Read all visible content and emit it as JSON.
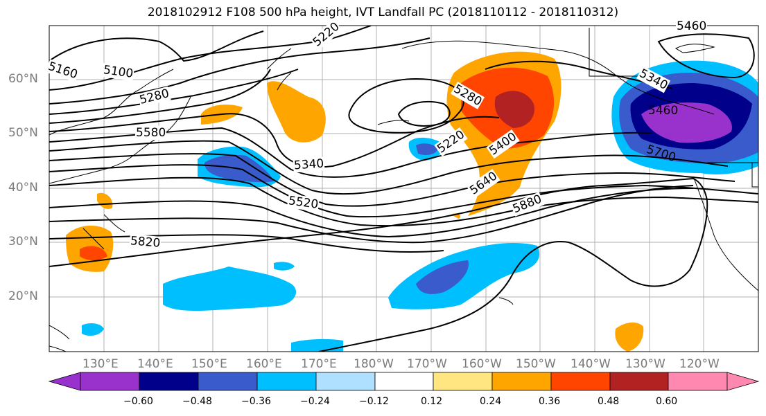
{
  "title": "2018102912 F108 500 hPa height, IVT Landfall PC (2018110112 - 2018110312)",
  "lat_labels": [
    "60°N",
    "50°N",
    "40°N",
    "30°N",
    "20°N"
  ],
  "lon_labels": [
    "130°E",
    "140°E",
    "150°E",
    "160°E",
    "170°E",
    "180°W",
    "170°W",
    "160°W",
    "150°W",
    "140°W",
    "130°W",
    "120°W"
  ],
  "contour_labels": [
    "5160",
    "5100",
    "5280",
    "5220",
    "5580",
    "5340",
    "5520",
    "5820",
    "5280",
    "5220",
    "5400",
    "5640",
    "5880",
    "5340",
    "5460",
    "5700",
    "5460"
  ],
  "colorbar": {
    "ticks": [
      "−0.60",
      "−0.48",
      "−0.36",
      "−0.24",
      "−0.12",
      "0.12",
      "0.24",
      "0.36",
      "0.48",
      "0.60"
    ],
    "colors": [
      "#9932cc",
      "#00008b",
      "#3a5bcc",
      "#00bfff",
      "#b0e0ff",
      "#ffffff",
      "#ffe680",
      "#ffa500",
      "#ff4500",
      "#b22222",
      "#ff88b0"
    ]
  },
  "fill_colors": {
    "neg_light": "#00bfff",
    "neg_mid": "#3a5bcc",
    "neg_dark": "#00008b",
    "neg_max": "#9932cc",
    "pos_light": "#ffa500",
    "pos_mid": "#ff4500",
    "pos_dark": "#b22222"
  }
}
